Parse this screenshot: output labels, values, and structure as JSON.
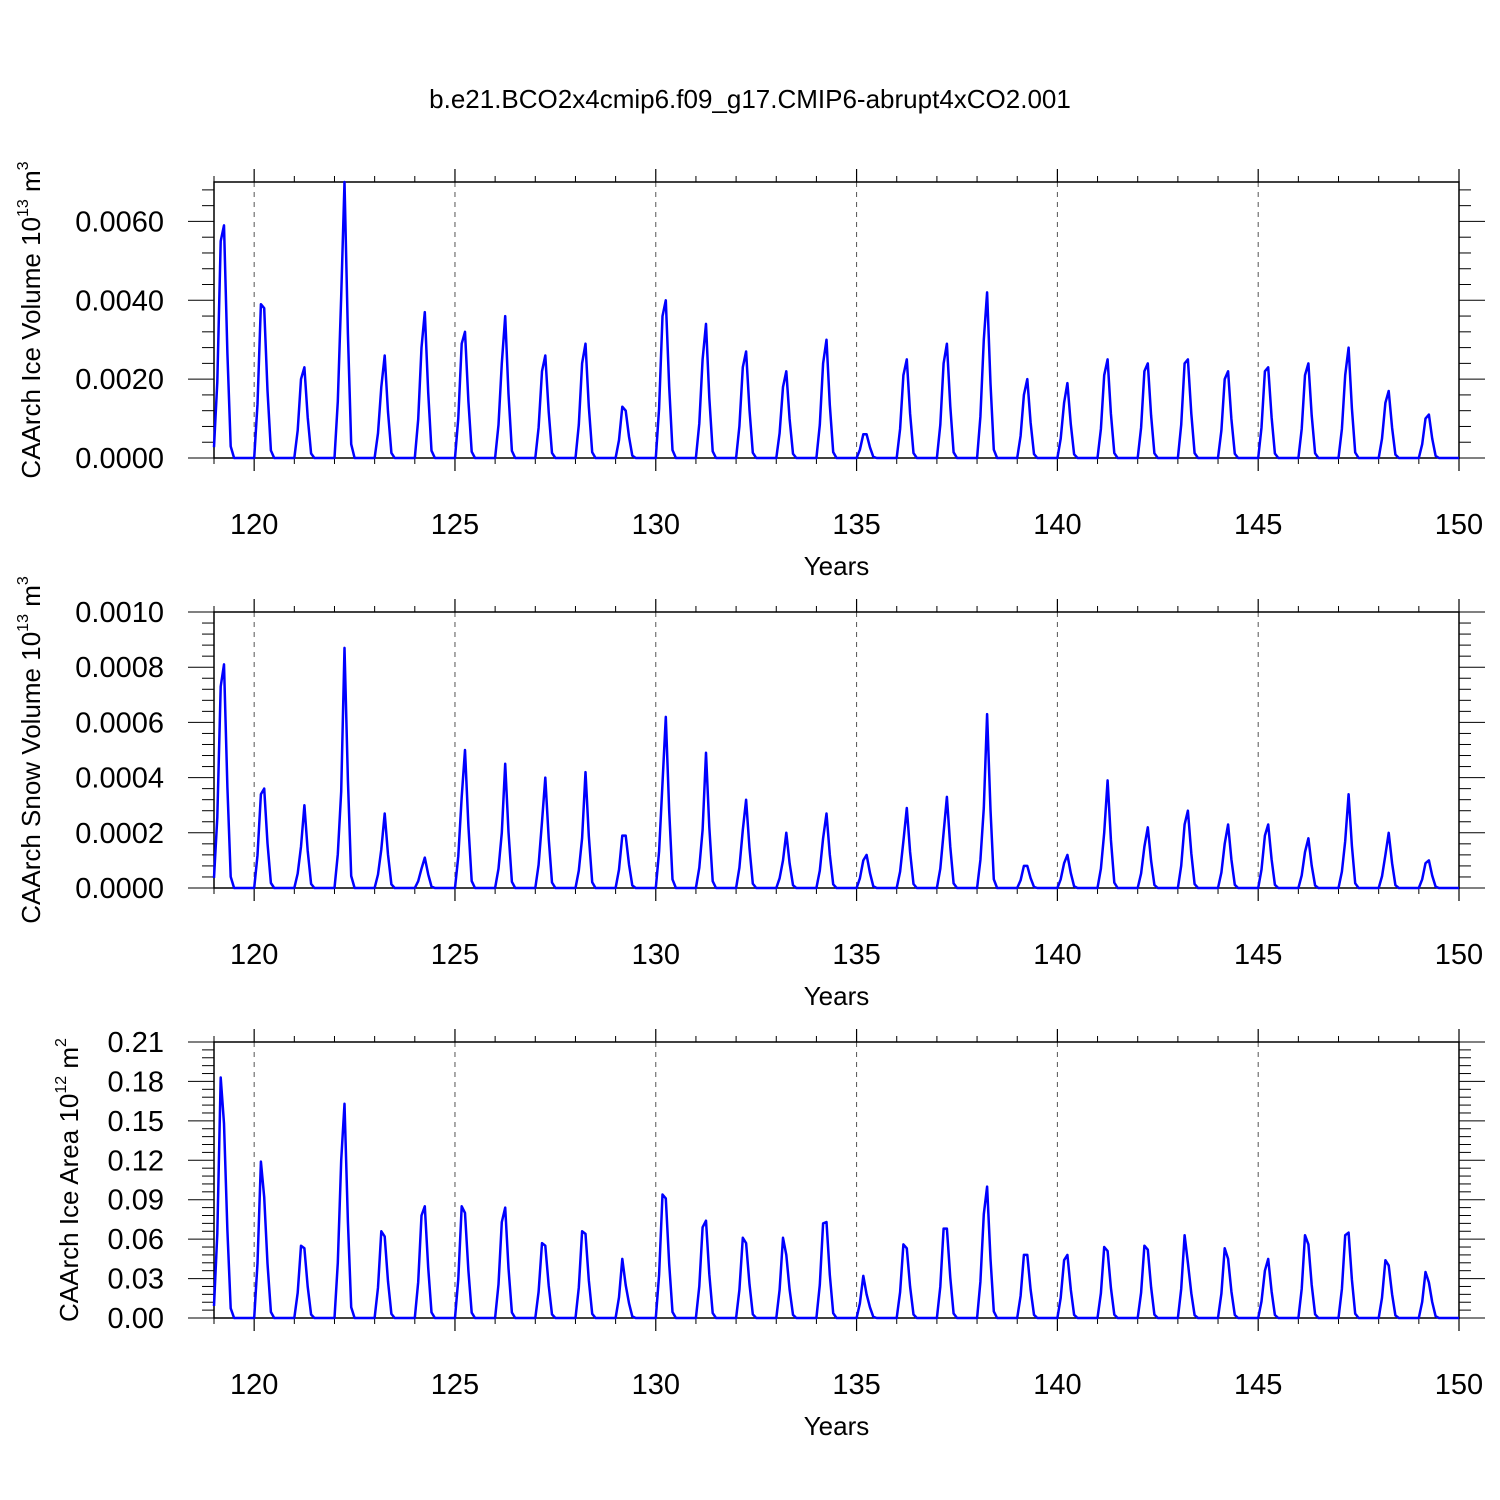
{
  "title": "b.e21.BCO2x4cmip6.f09_g17.CMIP6-abrupt4xCO2.001",
  "chart_data": [
    {
      "type": "line",
      "name": "ice-volume",
      "ylabel": {
        "pre": "CAArch Ice Volume 10",
        "exp": "13",
        "unit": " m",
        "unitexp": "3"
      },
      "xlabel": "Years",
      "xlim": [
        119,
        150
      ],
      "ylim": [
        0,
        0.007
      ],
      "yticks": [
        0,
        0.002,
        0.004,
        0.006
      ],
      "ytick_labels": [
        "0.0000",
        "0.0020",
        "0.0040",
        "0.0060"
      ],
      "xticks": [
        120,
        125,
        130,
        135,
        140,
        145,
        150
      ],
      "xtick_labels": [
        "120",
        "125",
        "130",
        "135",
        "140",
        "145",
        "150"
      ],
      "color": "#0000ff",
      "peaks": [
        [
          0.0055,
          0.0059
        ],
        [
          0.0039,
          0.0038
        ],
        [
          0.002,
          0.0023
        ],
        [
          0.0041,
          0.007
        ],
        [
          0.0018,
          0.0026
        ],
        [
          0.0028,
          0.0037
        ],
        [
          0.0029,
          0.0032
        ],
        [
          0.0024,
          0.0036
        ],
        [
          0.0022,
          0.0026
        ],
        [
          0.0024,
          0.0029
        ],
        [
          0.0013,
          0.0012
        ],
        [
          0.0036,
          0.004
        ],
        [
          0.0025,
          0.0034
        ],
        [
          0.0023,
          0.0027
        ],
        [
          0.0018,
          0.0022
        ],
        [
          0.0024,
          0.003
        ],
        [
          0.0006,
          0.0006
        ],
        [
          0.0021,
          0.0025
        ],
        [
          0.0024,
          0.0029
        ],
        [
          0.003,
          0.0042
        ],
        [
          0.0016,
          0.002
        ],
        [
          0.0014,
          0.0019
        ],
        [
          0.0021,
          0.0025
        ],
        [
          0.0022,
          0.0024
        ],
        [
          0.0024,
          0.0025
        ],
        [
          0.002,
          0.0022
        ],
        [
          0.0022,
          0.0023
        ],
        [
          0.0021,
          0.0024
        ],
        [
          0.0021,
          0.0028
        ],
        [
          0.0014,
          0.0017
        ],
        [
          0.001,
          0.0011
        ]
      ]
    },
    {
      "type": "line",
      "name": "snow-volume",
      "ylabel": {
        "pre": "CAArch Snow Volume 10",
        "exp": "13",
        "unit": " m",
        "unitexp": "3"
      },
      "xlabel": "Years",
      "xlim": [
        119,
        150
      ],
      "ylim": [
        0,
        0.001
      ],
      "yticks": [
        0,
        0.0002,
        0.0004,
        0.0006,
        0.0008,
        0.001
      ],
      "ytick_labels": [
        "0.0000",
        "0.0002",
        "0.0004",
        "0.0006",
        "0.0008",
        "0.0010"
      ],
      "xticks": [
        120,
        125,
        130,
        135,
        140,
        145,
        150
      ],
      "xtick_labels": [
        "120",
        "125",
        "130",
        "135",
        "140",
        "145",
        "150"
      ],
      "color": "#0000ff",
      "peaks": [
        [
          0.00073,
          0.00081
        ],
        [
          0.00034,
          0.00036
        ],
        [
          0.00015,
          0.0003
        ],
        [
          0.00035,
          0.00087
        ],
        [
          0.00014,
          0.00027
        ],
        [
          7e-05,
          0.00011
        ],
        [
          0.00033,
          0.0005
        ],
        [
          0.0002,
          0.00045
        ],
        [
          0.00024,
          0.0004
        ],
        [
          0.00018,
          0.00042
        ],
        [
          0.00019,
          0.00019
        ],
        [
          0.00038,
          0.00062
        ],
        [
          0.00021,
          0.00049
        ],
        [
          0.00021,
          0.00032
        ],
        [
          0.0001,
          0.0002
        ],
        [
          0.00018,
          0.00027
        ],
        [
          0.0001,
          0.00012
        ],
        [
          0.00017,
          0.00029
        ],
        [
          0.0002,
          0.00033
        ],
        [
          0.00029,
          0.00063
        ],
        [
          8e-05,
          8e-05
        ],
        [
          9e-05,
          0.00012
        ],
        [
          0.0002,
          0.00039
        ],
        [
          0.00015,
          0.00022
        ],
        [
          0.00023,
          0.00028
        ],
        [
          0.00016,
          0.00023
        ],
        [
          0.00019,
          0.00023
        ],
        [
          0.00013,
          0.00018
        ],
        [
          0.00017,
          0.00034
        ],
        [
          0.00012,
          0.0002
        ],
        [
          9e-05,
          0.0001
        ]
      ]
    },
    {
      "type": "line",
      "name": "ice-area",
      "ylabel": {
        "pre": "CAArch Ice Area 10",
        "exp": "12",
        "unit": " m",
        "unitexp": "2"
      },
      "xlabel": "Years",
      "xlim": [
        119,
        150
      ],
      "ylim": [
        0,
        0.21
      ],
      "yticks": [
        0,
        0.03,
        0.06,
        0.09,
        0.12,
        0.15,
        0.18,
        0.21
      ],
      "ytick_labels": [
        "0.00",
        "0.03",
        "0.06",
        "0.09",
        "0.12",
        "0.15",
        "0.18",
        "0.21"
      ],
      "xticks": [
        120,
        125,
        130,
        135,
        140,
        145,
        150
      ],
      "xtick_labels": [
        "120",
        "125",
        "130",
        "135",
        "140",
        "145",
        "150"
      ],
      "color": "#0000ff",
      "peaks": [
        [
          0.183,
          0.148
        ],
        [
          0.119,
          0.092
        ],
        [
          0.055,
          0.053
        ],
        [
          0.12,
          0.163
        ],
        [
          0.066,
          0.062
        ],
        [
          0.078,
          0.085
        ],
        [
          0.085,
          0.08
        ],
        [
          0.073,
          0.084
        ],
        [
          0.057,
          0.055
        ],
        [
          0.066,
          0.064
        ],
        [
          0.045,
          0.025
        ],
        [
          0.094,
          0.091
        ],
        [
          0.069,
          0.074
        ],
        [
          0.061,
          0.057
        ],
        [
          0.061,
          0.048
        ],
        [
          0.072,
          0.073
        ],
        [
          0.032,
          0.018
        ],
        [
          0.056,
          0.053
        ],
        [
          0.068,
          0.068
        ],
        [
          0.079,
          0.1
        ],
        [
          0.048,
          0.048
        ],
        [
          0.044,
          0.048
        ],
        [
          0.054,
          0.051
        ],
        [
          0.055,
          0.052
        ],
        [
          0.063,
          0.042
        ],
        [
          0.053,
          0.045
        ],
        [
          0.036,
          0.045
        ],
        [
          0.063,
          0.056
        ],
        [
          0.063,
          0.065
        ],
        [
          0.044,
          0.04
        ],
        [
          0.035,
          0.027
        ]
      ]
    }
  ]
}
